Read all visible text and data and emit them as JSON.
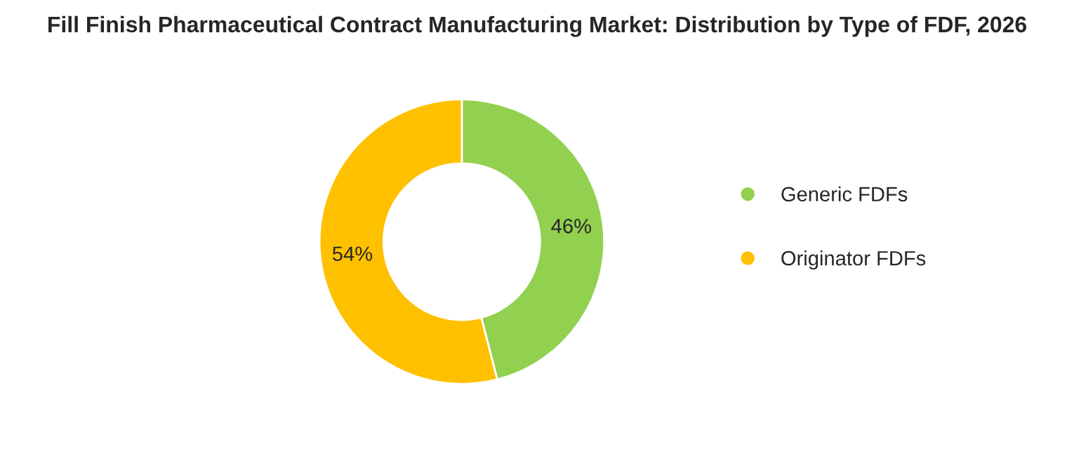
{
  "chart_data": {
    "type": "donut",
    "title": "Fill Finish Pharmaceutical Contract Manufacturing Market: Distribution by Type of FDF, 2026",
    "categories": [
      "Generic FDFs",
      "Originator FDFs"
    ],
    "values": [
      46,
      54
    ],
    "colors": [
      "#92d050",
      "#ffc000"
    ],
    "value_labels": [
      "46%",
      "54%"
    ],
    "legend": "right"
  }
}
